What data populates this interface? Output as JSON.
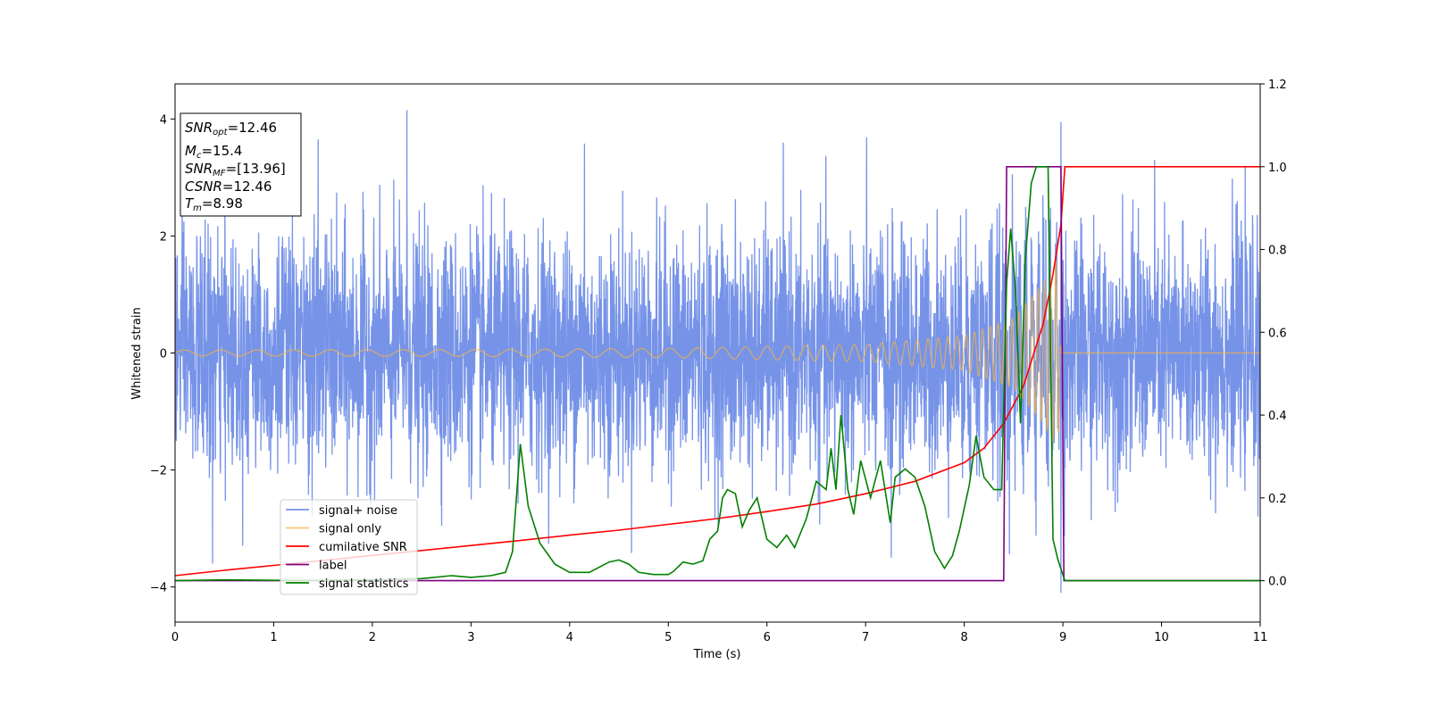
{
  "chart_data": {
    "type": "line",
    "xlabel": "Time (s)",
    "ylabel": "Whitened strain",
    "xlim": [
      0,
      11
    ],
    "ylim": [
      -4.6,
      4.6
    ],
    "y2lim": [
      -0.1,
      1.2
    ],
    "xticks": [
      0,
      1,
      2,
      3,
      4,
      5,
      6,
      7,
      8,
      9,
      10,
      11
    ],
    "yticks": [
      -4,
      -2,
      0,
      2,
      4
    ],
    "yticklabels": [
      "−4",
      "−2",
      "0",
      "2",
      "4"
    ],
    "y2ticks": [
      0.0,
      0.2,
      0.4,
      0.6,
      0.8,
      1.0,
      1.2
    ],
    "y2ticklabels": [
      "0.0",
      "0.2",
      "0.4",
      "0.6",
      "0.8",
      "1.0",
      "1.2"
    ],
    "legend_position": "lower-left",
    "grid": false,
    "info_box": {
      "snr_opt_label": "SNR",
      "snr_opt_sub": "opt",
      "snr_opt_value": "=12.46",
      "mc_label": "M",
      "mc_sub": "c",
      "mc_value": "=15.4",
      "snr_mf_label": "SNR",
      "snr_mf_sub": "MF",
      "snr_mf_value": "=[13.96]",
      "csnr_label": "CSNR",
      "csnr_value": "=12.46",
      "tm_label": "T",
      "tm_sub": "m",
      "tm_value": "=8.98"
    },
    "series": [
      {
        "name": "signal+ noise",
        "color": "#6a8ae6",
        "axis": "left",
        "kind": "noise",
        "sigma": 1.0,
        "x_range": [
          0,
          11
        ],
        "extreme_spikes": [
          [
            2.35,
            4.15
          ],
          [
            8.98,
            3.95
          ],
          [
            8.98,
            -4.1
          ],
          [
            0.38,
            -3.6
          ],
          [
            7.26,
            -3.5
          ],
          [
            1.45,
            3.65
          ],
          [
            4.15,
            3.58
          ]
        ]
      },
      {
        "name": "signal only",
        "color": "#f5b342",
        "axis": "left",
        "kind": "chirp",
        "x_range": [
          0,
          8.98
        ],
        "envelope": [
          [
            0,
            0.05
          ],
          [
            3,
            0.06
          ],
          [
            5,
            0.08
          ],
          [
            7,
            0.15
          ],
          [
            8,
            0.3
          ],
          [
            8.5,
            0.6
          ],
          [
            8.8,
            1.2
          ],
          [
            8.95,
            1.65
          ],
          [
            8.98,
            0.0
          ]
        ],
        "freq_start": 2.7,
        "freq_end": 60
      },
      {
        "name": "cumilative SNR",
        "color": "#ff0000",
        "axis": "right",
        "x": [
          0,
          0.5,
          1,
          1.5,
          2,
          2.5,
          3,
          3.5,
          4,
          4.5,
          5,
          5.5,
          6,
          6.5,
          7,
          7.5,
          8,
          8.2,
          8.4,
          8.6,
          8.8,
          8.9,
          8.98,
          9.02,
          11
        ],
        "y": [
          0.012,
          0.025,
          0.037,
          0.049,
          0.061,
          0.073,
          0.085,
          0.097,
          0.11,
          0.122,
          0.136,
          0.15,
          0.167,
          0.185,
          0.21,
          0.24,
          0.285,
          0.32,
          0.38,
          0.47,
          0.62,
          0.74,
          0.86,
          1.0,
          1.0
        ]
      },
      {
        "name": "label",
        "color": "#800080",
        "axis": "right",
        "x": [
          0,
          8.4,
          8.43,
          8.98,
          9.01,
          11
        ],
        "y": [
          0.0,
          0.0,
          1.0,
          1.0,
          0.0,
          0.0
        ]
      },
      {
        "name": "signal statistics",
        "color": "#008000",
        "axis": "right",
        "x": [
          0,
          0.5,
          1,
          1.5,
          2,
          2.5,
          2.8,
          3.0,
          3.2,
          3.35,
          3.42,
          3.5,
          3.58,
          3.7,
          3.85,
          4.0,
          4.2,
          4.4,
          4.5,
          4.6,
          4.7,
          4.85,
          5.0,
          5.05,
          5.15,
          5.25,
          5.35,
          5.42,
          5.5,
          5.55,
          5.6,
          5.68,
          5.75,
          5.82,
          5.9,
          6.0,
          6.1,
          6.2,
          6.28,
          6.4,
          6.5,
          6.6,
          6.65,
          6.7,
          6.75,
          6.82,
          6.88,
          6.95,
          7.05,
          7.15,
          7.25,
          7.3,
          7.4,
          7.5,
          7.6,
          7.7,
          7.8,
          7.88,
          7.95,
          8.05,
          8.12,
          8.2,
          8.3,
          8.38,
          8.43,
          8.47,
          8.52,
          8.57,
          8.62,
          8.68,
          8.73,
          8.8,
          8.85,
          8.9,
          8.95,
          9.02,
          9.1,
          11
        ],
        "y": [
          0.0,
          0.002,
          0.001,
          0.001,
          0.002,
          0.005,
          0.012,
          0.008,
          0.012,
          0.02,
          0.07,
          0.33,
          0.18,
          0.09,
          0.04,
          0.02,
          0.02,
          0.045,
          0.05,
          0.04,
          0.02,
          0.015,
          0.015,
          0.022,
          0.045,
          0.04,
          0.048,
          0.1,
          0.12,
          0.2,
          0.22,
          0.21,
          0.13,
          0.17,
          0.2,
          0.1,
          0.08,
          0.11,
          0.08,
          0.15,
          0.24,
          0.22,
          0.32,
          0.22,
          0.4,
          0.22,
          0.16,
          0.29,
          0.2,
          0.29,
          0.14,
          0.25,
          0.27,
          0.25,
          0.18,
          0.07,
          0.03,
          0.06,
          0.12,
          0.23,
          0.35,
          0.25,
          0.22,
          0.22,
          0.72,
          0.85,
          0.7,
          0.38,
          0.78,
          0.96,
          1.0,
          1.0,
          1.0,
          0.1,
          0.05,
          0.0,
          0.0,
          0.0
        ]
      }
    ]
  }
}
